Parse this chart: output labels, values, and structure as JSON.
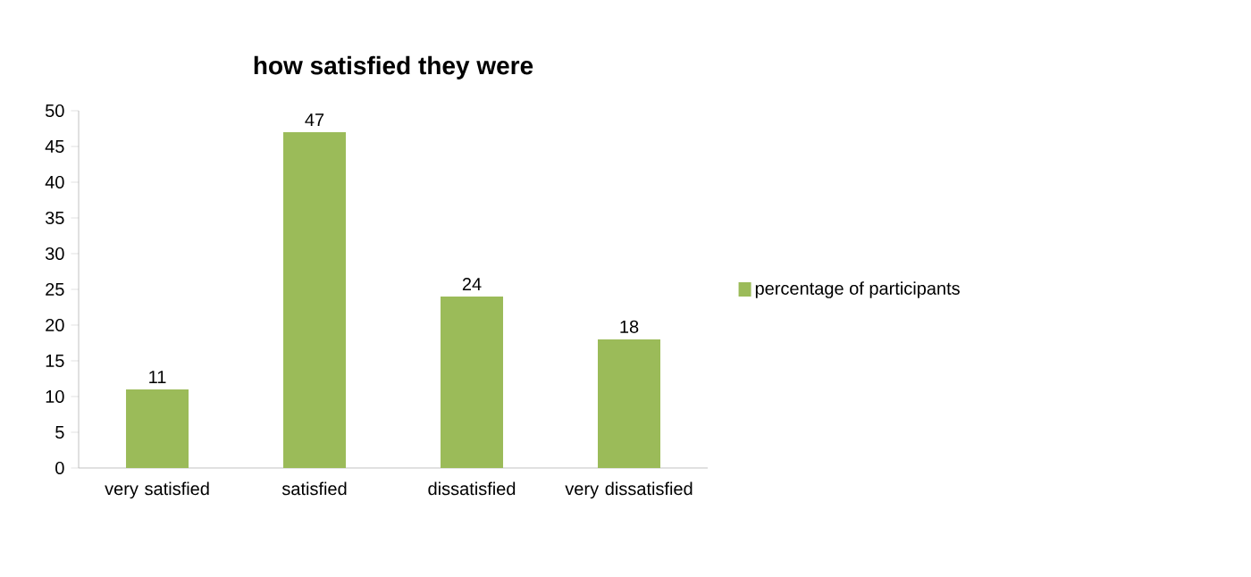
{
  "chart_data": {
    "type": "bar",
    "title": "how satisfied they were",
    "categories": [
      "very satisfied",
      "satisfied",
      "dissatisfied",
      "very dissatisfied"
    ],
    "series": [
      {
        "name": "percentage of participants",
        "color": "#9bbb59",
        "values": [
          11,
          47,
          24,
          18
        ]
      }
    ],
    "ylim": [
      0,
      50
    ],
    "yticks": [
      0,
      5,
      10,
      15,
      20,
      25,
      30,
      35,
      40,
      45,
      50
    ],
    "data_labels": true,
    "legend": "right"
  }
}
